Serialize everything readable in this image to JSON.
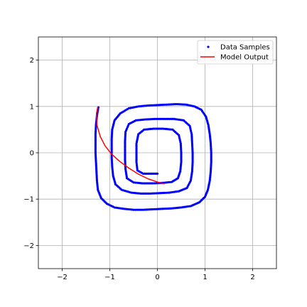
{
  "chart_data": {
    "type": "scatter",
    "title": "",
    "xlabel": "",
    "ylabel": "",
    "xlim": [
      -2.5,
      2.5
    ],
    "ylim": [
      -2.5,
      2.5
    ],
    "xticks": [
      -2,
      -1,
      0,
      1,
      2
    ],
    "yticks": [
      -2,
      -1,
      0,
      1,
      2
    ],
    "xtick_labels": [
      "−2",
      "−1",
      "0",
      "1",
      "2"
    ],
    "ytick_labels": [
      "−2",
      "−1",
      "0",
      "1",
      "2"
    ],
    "grid": true,
    "legend": {
      "position": "top-right"
    },
    "series": [
      {
        "name": "Data Samples",
        "kind": "scatter",
        "color": "#0000ff",
        "points": [
          [
            -1.24,
            0.98
          ],
          [
            -1.27,
            0.8
          ],
          [
            -1.29,
            0.6
          ],
          [
            -1.3,
            0.4
          ],
          [
            -1.3,
            0.2
          ],
          [
            -1.3,
            0.0
          ],
          [
            -1.29,
            -0.2
          ],
          [
            -1.28,
            -0.4
          ],
          [
            -1.27,
            -0.6
          ],
          [
            -1.25,
            -0.8
          ],
          [
            -1.18,
            -0.98
          ],
          [
            -1.06,
            -1.1
          ],
          [
            -0.9,
            -1.18
          ],
          [
            -0.7,
            -1.21
          ],
          [
            -0.5,
            -1.23
          ],
          [
            -0.3,
            -1.23
          ],
          [
            -0.1,
            -1.22
          ],
          [
            0.1,
            -1.21
          ],
          [
            0.3,
            -1.2
          ],
          [
            0.5,
            -1.18
          ],
          [
            0.7,
            -1.15
          ],
          [
            0.88,
            -1.07
          ],
          [
            1.0,
            -0.95
          ],
          [
            1.06,
            -0.8
          ],
          [
            1.1,
            -0.6
          ],
          [
            1.12,
            -0.4
          ],
          [
            1.13,
            -0.2
          ],
          [
            1.13,
            0.0
          ],
          [
            1.12,
            0.2
          ],
          [
            1.1,
            0.4
          ],
          [
            1.07,
            0.6
          ],
          [
            1.02,
            0.78
          ],
          [
            0.92,
            0.93
          ],
          [
            0.78,
            1.0
          ],
          [
            0.6,
            1.04
          ],
          [
            0.4,
            1.05
          ],
          [
            0.2,
            1.04
          ],
          [
            0.0,
            1.03
          ],
          [
            -0.2,
            1.02
          ],
          [
            -0.4,
            1.0
          ],
          [
            -0.6,
            0.96
          ],
          [
            -0.78,
            0.85
          ],
          [
            -0.9,
            0.7
          ],
          [
            -0.95,
            0.5
          ],
          [
            -0.96,
            0.3
          ],
          [
            -0.96,
            0.1
          ],
          [
            -0.96,
            -0.1
          ],
          [
            -0.95,
            -0.3
          ],
          [
            -0.93,
            -0.5
          ],
          [
            -0.88,
            -0.68
          ],
          [
            -0.75,
            -0.8
          ],
          [
            -0.55,
            -0.86
          ],
          [
            -0.35,
            -0.88
          ],
          [
            -0.15,
            -0.88
          ],
          [
            0.05,
            -0.87
          ],
          [
            0.25,
            -0.86
          ],
          [
            0.45,
            -0.83
          ],
          [
            0.62,
            -0.76
          ],
          [
            0.7,
            -0.6
          ],
          [
            0.73,
            -0.4
          ],
          [
            0.74,
            -0.2
          ],
          [
            0.74,
            0.0
          ],
          [
            0.73,
            0.2
          ],
          [
            0.72,
            0.4
          ],
          [
            0.68,
            0.58
          ],
          [
            0.55,
            0.7
          ],
          [
            0.35,
            0.73
          ],
          [
            0.15,
            0.73
          ],
          [
            -0.05,
            0.73
          ],
          [
            -0.25,
            0.72
          ],
          [
            -0.45,
            0.7
          ],
          [
            -0.6,
            0.62
          ],
          [
            -0.67,
            0.45
          ],
          [
            -0.68,
            0.25
          ],
          [
            -0.68,
            0.05
          ],
          [
            -0.68,
            -0.15
          ],
          [
            -0.67,
            -0.35
          ],
          [
            -0.64,
            -0.55
          ],
          [
            -0.5,
            -0.64
          ],
          [
            -0.3,
            -0.66
          ],
          [
            -0.1,
            -0.66
          ],
          [
            0.1,
            -0.65
          ],
          [
            0.3,
            -0.63
          ],
          [
            0.43,
            -0.55
          ],
          [
            0.48,
            -0.4
          ],
          [
            0.5,
            -0.2
          ],
          [
            0.5,
            0.0
          ],
          [
            0.49,
            0.2
          ],
          [
            0.45,
            0.38
          ],
          [
            0.32,
            0.5
          ],
          [
            0.12,
            0.52
          ],
          [
            -0.08,
            0.52
          ],
          [
            -0.28,
            0.5
          ],
          [
            -0.4,
            0.4
          ],
          [
            -0.44,
            0.2
          ],
          [
            -0.44,
            0.0
          ],
          [
            -0.44,
            -0.2
          ],
          [
            -0.42,
            -0.38
          ],
          [
            -0.3,
            -0.45
          ],
          [
            -0.15,
            -0.45
          ],
          [
            0.0,
            -0.45
          ]
        ]
      },
      {
        "name": "Model Output",
        "kind": "line",
        "color": "#ff0000",
        "points": [
          [
            -1.25,
            1.0
          ],
          [
            -1.28,
            0.85
          ],
          [
            -1.27,
            0.6
          ],
          [
            -1.2,
            0.35
          ],
          [
            -1.1,
            0.15
          ],
          [
            -0.97,
            -0.02
          ],
          [
            -0.8,
            -0.18
          ],
          [
            -0.6,
            -0.33
          ],
          [
            -0.4,
            -0.46
          ],
          [
            -0.2,
            -0.56
          ],
          [
            0.0,
            -0.63
          ],
          [
            0.15,
            -0.67
          ]
        ]
      }
    ]
  }
}
